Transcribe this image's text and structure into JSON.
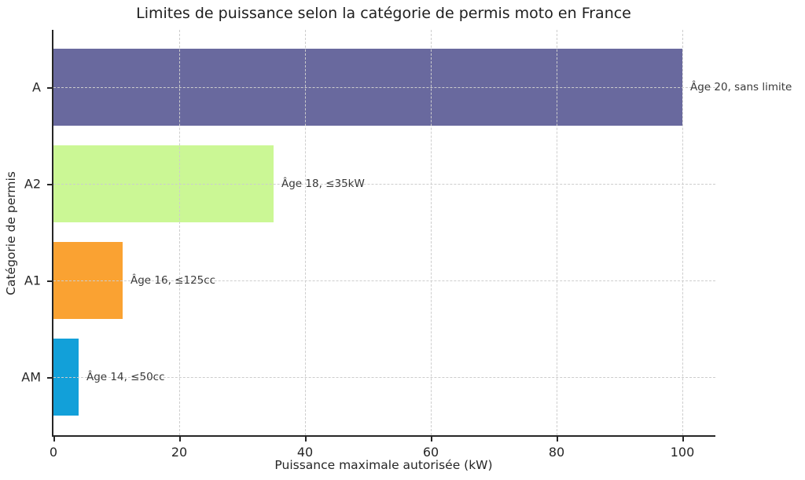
{
  "chart_data": {
    "type": "bar",
    "orientation": "horizontal",
    "title": "Limites de puissance selon la catégorie de permis moto en France",
    "xlabel": "Puissance maximale autorisée (kW)",
    "ylabel": "Catégorie de permis",
    "categories": [
      "A",
      "A2",
      "A1",
      "AM"
    ],
    "values": [
      100,
      35,
      11,
      4
    ],
    "annotations": [
      "Âge 20, sans limite",
      "Âge 18, ≤35kW",
      "Âge 16, ≤125cc",
      "Âge 14, ≤50cc"
    ],
    "bar_colors": [
      "#69699E",
      "#CBF795",
      "#FAA232",
      "#12A0D9"
    ],
    "x_ticks": [
      0,
      20,
      40,
      60,
      80,
      100
    ],
    "xlim": [
      0,
      105.5
    ],
    "grid": "dashed, vertical at x ticks and horizontal at category centers, drawn over bars",
    "legend": "none",
    "colors": {
      "background": "#ffffff",
      "spine": "#262626",
      "gridline": "#cdcdcd",
      "text": "#262626",
      "annotation_text": "#3a3a3a"
    }
  }
}
